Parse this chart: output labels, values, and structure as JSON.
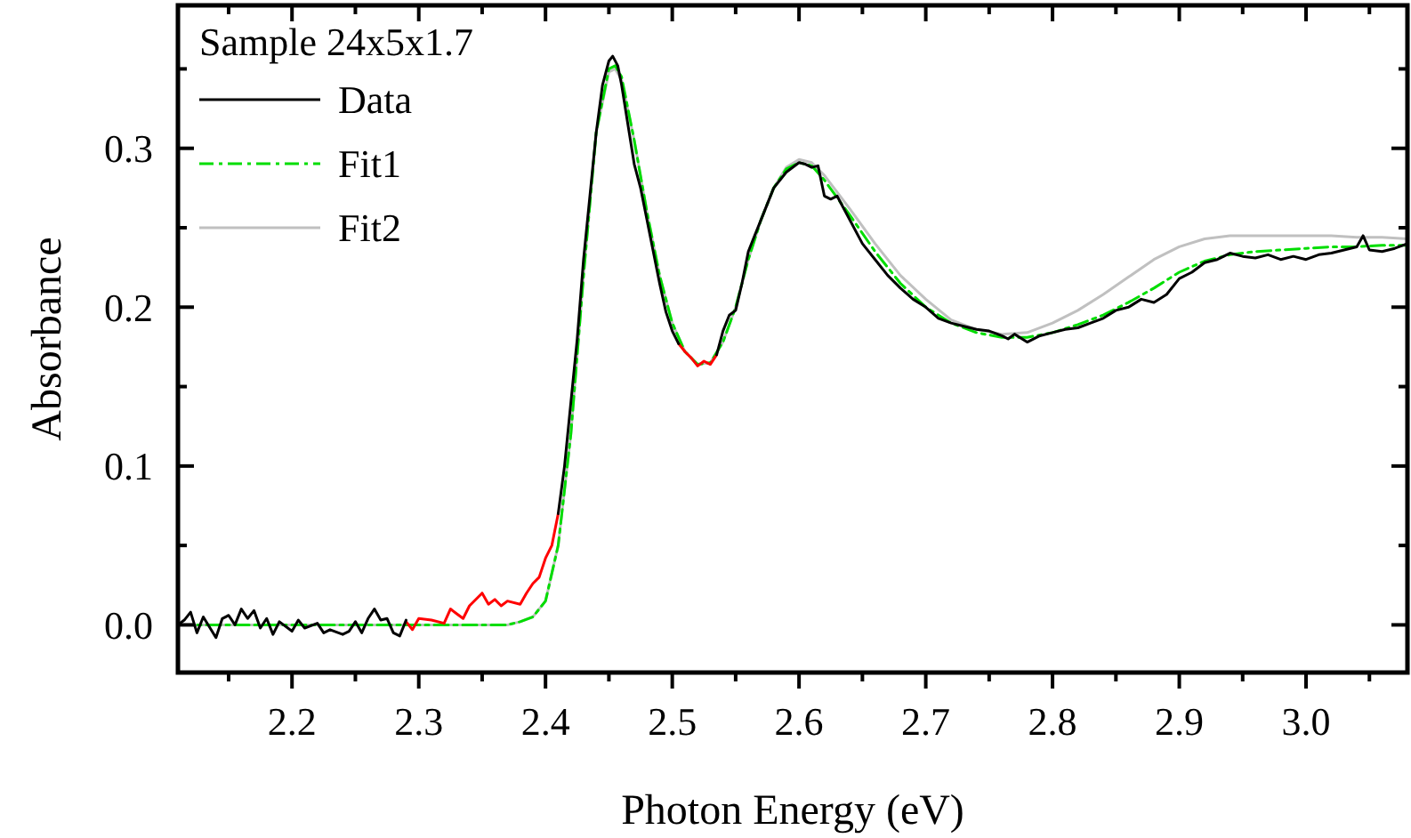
{
  "chart_data": {
    "type": "line",
    "xlabel": "Photon Energy (eV)",
    "ylabel": "Absorbance",
    "legend_title": "Sample 24x5x1.7",
    "legend": "top left",
    "grid": false,
    "marker": "none",
    "xlim": [
      2.11,
      3.08
    ],
    "ylim": [
      -0.03,
      0.39
    ],
    "xticks": [
      {
        "value": 2.15,
        "label": null
      },
      2.2,
      {
        "value": 2.25,
        "label": null
      },
      2.3,
      {
        "value": 2.35,
        "label": null
      },
      2.4,
      {
        "value": 2.45,
        "label": null
      },
      2.5,
      {
        "value": 2.55,
        "label": null
      },
      2.6,
      {
        "value": 2.65,
        "label": null
      },
      2.7,
      {
        "value": 2.75,
        "label": null
      },
      2.8,
      {
        "value": 2.85,
        "label": null
      },
      2.9,
      {
        "value": 2.95,
        "label": null
      },
      {
        "value": 3.0,
        "label": "3.0"
      },
      {
        "value": 3.05,
        "label": null
      }
    ],
    "yticks": [
      {
        "value": 0.0,
        "label": "0.0"
      },
      {
        "value": 0.05,
        "label": null
      },
      0.1,
      {
        "value": 0.15,
        "label": null
      },
      0.2,
      {
        "value": 0.25,
        "label": null
      },
      0.3,
      {
        "value": 0.35,
        "label": null
      }
    ],
    "series": [
      {
        "name": "Data",
        "color": "#000000",
        "line_style": "solid",
        "x": [
          2.11,
          2.115,
          2.12,
          2.125,
          2.13,
          2.14,
          2.145,
          2.15,
          2.155,
          2.16,
          2.165,
          2.17,
          2.175,
          2.18,
          2.185,
          2.19,
          2.2,
          2.205,
          2.21,
          2.22,
          2.225,
          2.23,
          2.24,
          2.245,
          2.25,
          2.255,
          2.26,
          2.265,
          2.27,
          2.275,
          2.28,
          2.285,
          2.29,
          2.41,
          2.415,
          2.42,
          2.425,
          2.43,
          2.435,
          2.44,
          2.445,
          2.45,
          2.453,
          2.457,
          2.46,
          2.465,
          2.47,
          2.475,
          2.48,
          2.485,
          2.49,
          2.495,
          2.5,
          2.505,
          2.535,
          2.54,
          2.545,
          2.55,
          2.555,
          2.56,
          2.565,
          2.57,
          2.58,
          2.59,
          2.6,
          2.605,
          2.61,
          2.615,
          2.62,
          2.625,
          2.63,
          2.64,
          2.65,
          2.66,
          2.67,
          2.68,
          2.69,
          2.7,
          2.71,
          2.72,
          2.73,
          2.74,
          2.75,
          2.76,
          2.765,
          2.77,
          2.78,
          2.79,
          2.8,
          2.81,
          2.82,
          2.83,
          2.84,
          2.85,
          2.86,
          2.87,
          2.88,
          2.89,
          2.9,
          2.91,
          2.92,
          2.93,
          2.94,
          2.95,
          2.96,
          2.97,
          2.98,
          2.99,
          3.0,
          3.01,
          3.02,
          3.03,
          3.04,
          3.045,
          3.05,
          3.06,
          3.07,
          3.08
        ],
        "values": [
          0.0,
          0.003,
          0.008,
          -0.005,
          0.005,
          -0.008,
          0.004,
          0.006,
          0.0,
          0.01,
          0.004,
          0.009,
          -0.002,
          0.004,
          -0.006,
          0.002,
          -0.004,
          0.003,
          -0.002,
          0.001,
          -0.005,
          -0.003,
          -0.006,
          -0.004,
          0.002,
          -0.005,
          0.004,
          0.01,
          0.003,
          0.004,
          -0.005,
          -0.007,
          0.003,
          0.07,
          0.1,
          0.14,
          0.18,
          0.23,
          0.27,
          0.31,
          0.34,
          0.355,
          0.358,
          0.352,
          0.34,
          0.315,
          0.29,
          0.275,
          0.255,
          0.235,
          0.215,
          0.197,
          0.185,
          0.177,
          0.17,
          0.185,
          0.195,
          0.198,
          0.215,
          0.235,
          0.245,
          0.255,
          0.275,
          0.285,
          0.291,
          0.29,
          0.288,
          0.289,
          0.27,
          0.268,
          0.27,
          0.255,
          0.24,
          0.23,
          0.22,
          0.212,
          0.205,
          0.2,
          0.193,
          0.19,
          0.188,
          0.186,
          0.185,
          0.182,
          0.18,
          0.183,
          0.178,
          0.182,
          0.184,
          0.186,
          0.187,
          0.19,
          0.193,
          0.198,
          0.2,
          0.205,
          0.203,
          0.208,
          0.218,
          0.222,
          0.228,
          0.23,
          0.234,
          0.232,
          0.231,
          0.233,
          0.23,
          0.232,
          0.23,
          0.233,
          0.234,
          0.236,
          0.238,
          0.245,
          0.236,
          0.235,
          0.237,
          0.24
        ]
      },
      {
        "color": "#ff0000",
        "line_style": "solid",
        "x": [
          2.29,
          2.295,
          2.3,
          2.31,
          2.32,
          2.325,
          2.33,
          2.335,
          2.34,
          2.35,
          2.355,
          2.36,
          2.365,
          2.37,
          2.38,
          2.385,
          2.39,
          2.395,
          2.4,
          2.405,
          2.41,
          2.505,
          2.51,
          2.515,
          2.52,
          2.525,
          2.53,
          2.535
        ],
        "values": [
          0.002,
          -0.003,
          0.004,
          0.003,
          0.001,
          0.01,
          0.007,
          0.004,
          0.012,
          0.02,
          0.013,
          0.016,
          0.012,
          0.015,
          0.013,
          0.02,
          0.026,
          0.03,
          0.042,
          0.05,
          0.07,
          0.177,
          0.172,
          0.168,
          0.163,
          0.166,
          0.164,
          0.17
        ]
      },
      {
        "name": "Fit1",
        "color": "#00dd00",
        "line_style": "dashed",
        "x": [
          2.11,
          2.13,
          2.15,
          2.17,
          2.19,
          2.21,
          2.23,
          2.25,
          2.27,
          2.29,
          2.31,
          2.33,
          2.35,
          2.37,
          2.38,
          2.39,
          2.4,
          2.41,
          2.42,
          2.43,
          2.44,
          2.45,
          2.455,
          2.46,
          2.47,
          2.48,
          2.49,
          2.5,
          2.51,
          2.52,
          2.53,
          2.54,
          2.55,
          2.56,
          2.57,
          2.58,
          2.59,
          2.6,
          2.61,
          2.62,
          2.64,
          2.66,
          2.68,
          2.7,
          2.72,
          2.74,
          2.76,
          2.78,
          2.8,
          2.82,
          2.84,
          2.86,
          2.88,
          2.9,
          2.92,
          2.94,
          2.96,
          2.98,
          3.0,
          3.02,
          3.04,
          3.06,
          3.08
        ],
        "values": [
          0.0,
          0.0,
          0.0,
          0.0,
          0.0,
          0.0,
          0.0,
          0.0,
          0.0,
          0.0,
          0.0,
          0.0,
          0.0,
          0.0,
          0.002,
          0.005,
          0.015,
          0.05,
          0.12,
          0.22,
          0.31,
          0.35,
          0.352,
          0.345,
          0.305,
          0.26,
          0.22,
          0.19,
          0.172,
          0.164,
          0.165,
          0.178,
          0.2,
          0.23,
          0.255,
          0.275,
          0.287,
          0.291,
          0.289,
          0.28,
          0.258,
          0.235,
          0.215,
          0.2,
          0.19,
          0.184,
          0.181,
          0.181,
          0.184,
          0.189,
          0.195,
          0.203,
          0.212,
          0.222,
          0.229,
          0.233,
          0.235,
          0.236,
          0.237,
          0.238,
          0.238,
          0.239,
          0.239
        ]
      },
      {
        "name": "Fit2",
        "color": "#c0c0c0",
        "line_style": "solid",
        "x": [
          2.11,
          2.13,
          2.15,
          2.17,
          2.19,
          2.21,
          2.23,
          2.25,
          2.27,
          2.29,
          2.31,
          2.33,
          2.35,
          2.37,
          2.38,
          2.39,
          2.4,
          2.41,
          2.42,
          2.43,
          2.44,
          2.45,
          2.455,
          2.46,
          2.47,
          2.48,
          2.49,
          2.5,
          2.51,
          2.52,
          2.53,
          2.54,
          2.55,
          2.56,
          2.57,
          2.58,
          2.59,
          2.6,
          2.61,
          2.62,
          2.64,
          2.66,
          2.68,
          2.7,
          2.72,
          2.74,
          2.76,
          2.78,
          2.8,
          2.82,
          2.84,
          2.86,
          2.88,
          2.9,
          2.92,
          2.94,
          2.96,
          2.98,
          3.0,
          3.02,
          3.04,
          3.06,
          3.08
        ],
        "values": [
          0.0,
          0.0,
          0.0,
          0.0,
          0.0,
          0.0,
          0.0,
          0.0,
          0.0,
          0.0,
          0.0,
          0.0,
          0.0,
          0.0,
          0.002,
          0.005,
          0.015,
          0.05,
          0.12,
          0.22,
          0.31,
          0.348,
          0.35,
          0.343,
          0.305,
          0.26,
          0.22,
          0.19,
          0.172,
          0.164,
          0.165,
          0.178,
          0.2,
          0.23,
          0.255,
          0.275,
          0.288,
          0.293,
          0.291,
          0.283,
          0.262,
          0.24,
          0.22,
          0.205,
          0.192,
          0.186,
          0.183,
          0.184,
          0.19,
          0.198,
          0.208,
          0.219,
          0.23,
          0.238,
          0.243,
          0.245,
          0.245,
          0.245,
          0.245,
          0.245,
          0.244,
          0.244,
          0.243
        ]
      }
    ]
  }
}
